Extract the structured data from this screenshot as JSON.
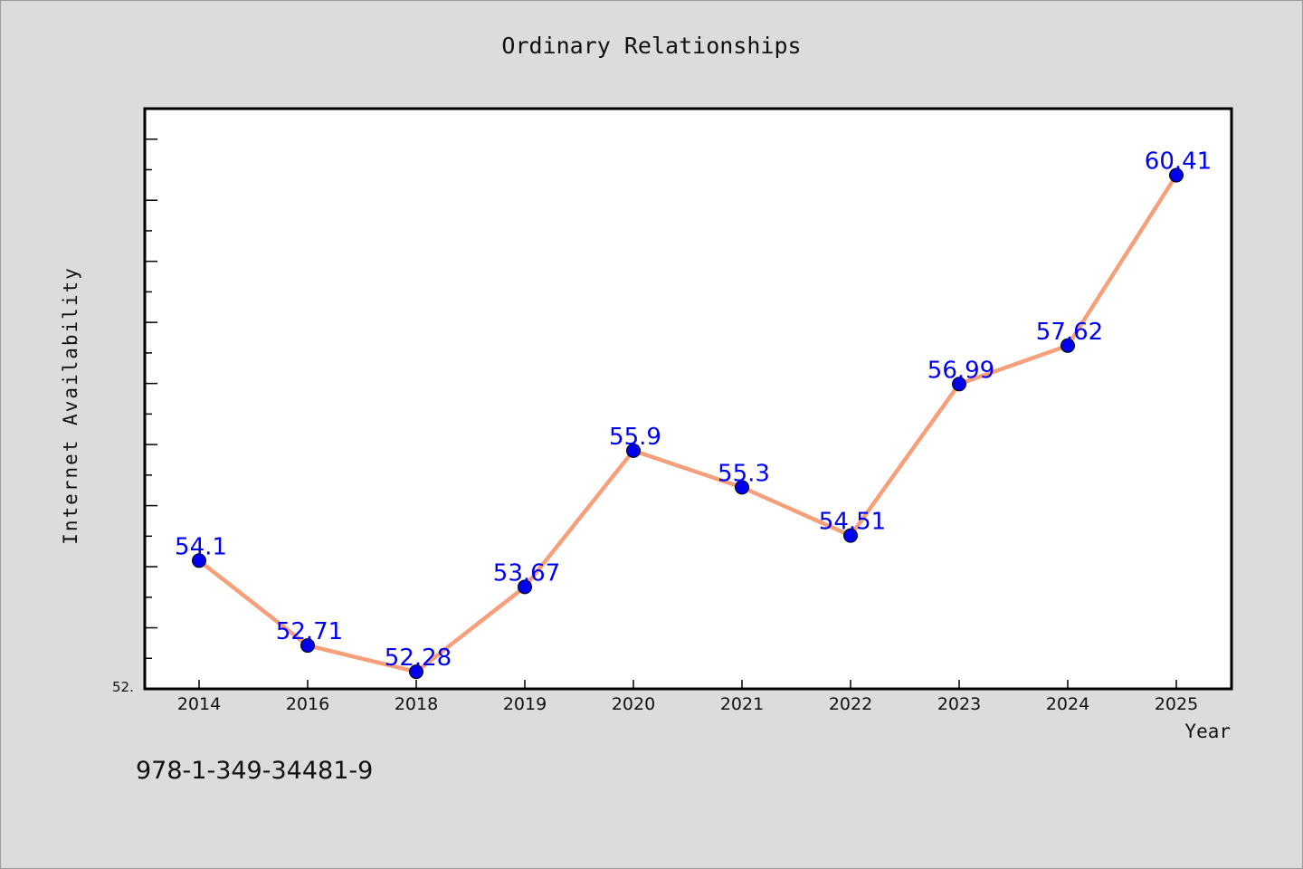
{
  "chart_data": {
    "type": "line",
    "title": "Ordinary Relationships",
    "xlabel": "Year",
    "ylabel": "Internet Availability",
    "categories": [
      "2014",
      "2016",
      "2018",
      "2019",
      "2020",
      "2021",
      "2022",
      "2023",
      "2024",
      "2025"
    ],
    "series": [
      {
        "values": [
          54.1,
          52.71,
          52.28,
          53.67,
          55.9,
          55.3,
          54.51,
          56.99,
          57.62,
          60.41
        ],
        "data_labels": [
          "54.1",
          "52.71",
          "52.28",
          "53.67",
          "55.9",
          "55.3",
          "54.51",
          "56.99",
          "57.62",
          "60.41"
        ],
        "line_color": "#f5a07a",
        "marker_color": "#0000ee",
        "label_color": "#0000ee"
      }
    ],
    "ylim": [
      52.0,
      61.5
    ],
    "y_min_tick_label": "52.",
    "grid": false,
    "legend": "none",
    "plot_background": "#ffffff",
    "figure_background": "#dcdcdc"
  },
  "footer": {
    "code": "978-1-349-34481-9"
  }
}
